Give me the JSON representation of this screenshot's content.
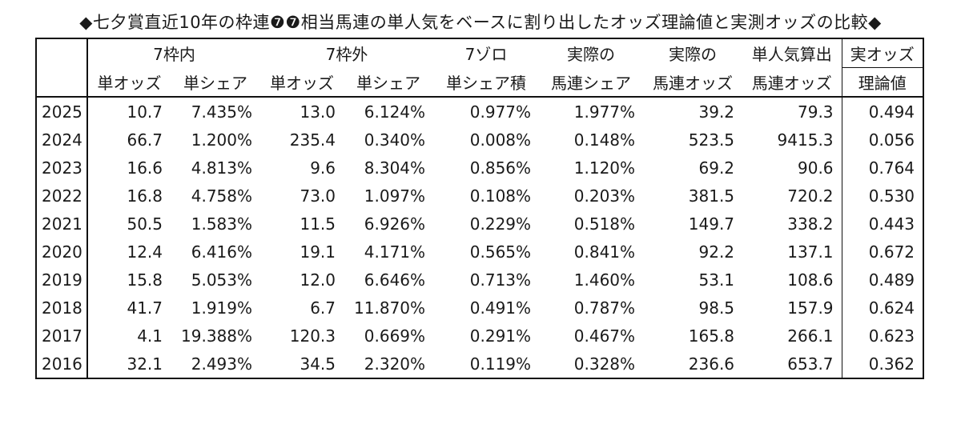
{
  "title": "◆七夕賞直近10年の枠連❼❼相当馬連の単人気をベースに割り出したオッズ理論値と実測オッズの比較◆",
  "header_row1": [
    "7枠内",
    "",
    "7枠外",
    "",
    "7ゾロ",
    "実際の",
    "実際の",
    "単人気算出",
    "実オッズ"
  ],
  "header_row2": [
    "単オッズ",
    "単シェア",
    "単オッズ",
    "単シェア",
    "単シェア積",
    "馬連シェア",
    "馬連オッズ",
    "馬連オッズ",
    "理論値"
  ],
  "rows": [
    [
      "2025",
      "10.7",
      "7.435%",
      "13.0",
      "6.124%",
      "0.977%",
      "1.977%",
      "39.2",
      "79.3",
      "0.494"
    ],
    [
      "2024",
      "66.7",
      "1.200%",
      "235.4",
      "0.340%",
      "0.008%",
      "0.148%",
      "523.5",
      "9415.3",
      "0.056"
    ],
    [
      "2023",
      "16.6",
      "4.813%",
      "9.6",
      "8.304%",
      "0.856%",
      "1.120%",
      "69.2",
      "90.6",
      "0.764"
    ],
    [
      "2022",
      "16.8",
      "4.758%",
      "73.0",
      "1.097%",
      "0.108%",
      "0.203%",
      "381.5",
      "720.2",
      "0.530"
    ],
    [
      "2021",
      "50.5",
      "1.583%",
      "11.5",
      "6.926%",
      "0.229%",
      "0.518%",
      "149.7",
      "338.2",
      "0.443"
    ],
    [
      "2020",
      "12.4",
      "6.416%",
      "19.1",
      "4.171%",
      "0.565%",
      "0.841%",
      "92.2",
      "137.1",
      "0.672"
    ],
    [
      "2019",
      "15.8",
      "5.053%",
      "12.0",
      "6.646%",
      "0.713%",
      "1.460%",
      "53.1",
      "108.6",
      "0.489"
    ],
    [
      "2018",
      "41.7",
      "1.919%",
      "6.7",
      "11.870%",
      "0.491%",
      "0.787%",
      "98.5",
      "157.9",
      "0.624"
    ],
    [
      "2017",
      "4.1",
      "19.388%",
      "120.3",
      "0.669%",
      "0.291%",
      "0.467%",
      "165.8",
      "266.1",
      "0.623"
    ],
    [
      "2016",
      "32.1",
      "2.493%",
      "34.5",
      "2.320%",
      "0.119%",
      "0.328%",
      "236.6",
      "653.7",
      "0.362"
    ]
  ]
}
